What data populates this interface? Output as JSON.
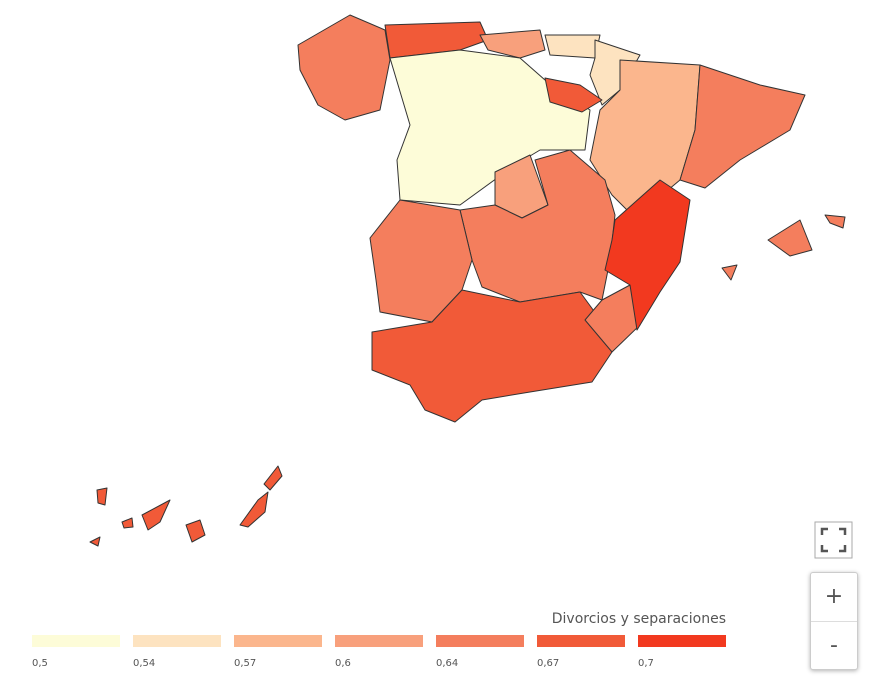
{
  "legend": {
    "title": "Divorcios y separaciones",
    "items": [
      {
        "value": 0.5,
        "label": "0,5",
        "color": "#fdfcd8"
      },
      {
        "value": 0.54,
        "label": "0,54",
        "color": "#fde3c0"
      },
      {
        "value": 0.57,
        "label": "0,57",
        "color": "#fbb68d"
      },
      {
        "value": 0.6,
        "label": "0,6",
        "color": "#f8a07c"
      },
      {
        "value": 0.64,
        "label": "0,64",
        "color": "#f47e5d"
      },
      {
        "value": 0.67,
        "label": "0,67",
        "color": "#f15a38"
      },
      {
        "value": 0.7,
        "label": "0,7",
        "color": "#f2391f"
      }
    ]
  },
  "controls": {
    "zoom_in": "+",
    "zoom_out": "-"
  }
}
